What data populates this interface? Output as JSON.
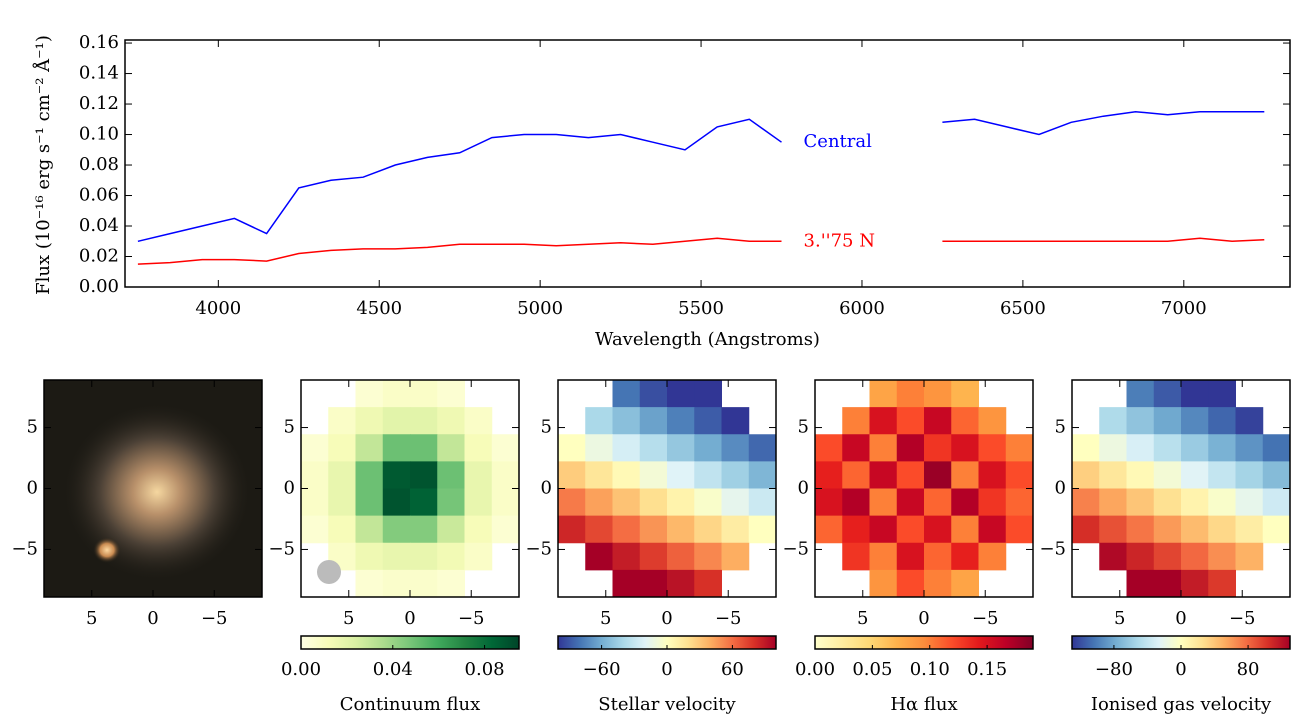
{
  "chart_data": [
    {
      "type": "line",
      "xlabel": "Wavelength (Angstroms)",
      "ylabel": "Flux (10⁻¹⁶ erg s⁻¹ cm⁻² Å⁻¹)",
      "x": [
        3750,
        3850,
        3950,
        4050,
        4150,
        4250,
        4350,
        4450,
        4550,
        4650,
        4750,
        4850,
        4950,
        5050,
        5150,
        5250,
        5350,
        5450,
        5550,
        5650,
        5750,
        5850,
        5950,
        6050,
        6150,
        6250,
        6350,
        6450,
        6550,
        6650,
        6750,
        6850,
        6950,
        7050,
        7150,
        7250
      ],
      "series": [
        {
          "name": "Central",
          "color": "#0000ff",
          "values": [
            0.03,
            0.035,
            0.04,
            0.045,
            0.035,
            0.065,
            0.07,
            0.072,
            0.08,
            0.085,
            0.088,
            0.098,
            0.1,
            0.1,
            0.098,
            0.1,
            0.095,
            0.09,
            0.105,
            0.11,
            0.095,
            null,
            null,
            null,
            null,
            0.108,
            0.11,
            0.105,
            0.1,
            0.108,
            0.112,
            0.115,
            0.113,
            0.115,
            0.115,
            0.115
          ]
        },
        {
          "name": "3.''75 N",
          "color": "#ff0000",
          "values": [
            0.015,
            0.016,
            0.018,
            0.018,
            0.017,
            0.022,
            0.024,
            0.025,
            0.025,
            0.026,
            0.028,
            0.028,
            0.028,
            0.027,
            0.028,
            0.029,
            0.028,
            0.03,
            0.032,
            0.03,
            0.03,
            null,
            null,
            null,
            null,
            0.03,
            0.03,
            0.03,
            0.03,
            0.03,
            0.03,
            0.03,
            0.03,
            0.032,
            0.03,
            0.031
          ]
        }
      ],
      "xlim": [
        3710,
        7330
      ],
      "ylim": [
        0,
        0.162
      ],
      "xticks": [
        4000,
        4500,
        5000,
        5500,
        6000,
        6500,
        7000
      ],
      "yticks": [
        {
          "value": 0,
          "label": "0.00"
        },
        0.02,
        0.04,
        0.06,
        0.08,
        {
          "value": 0.1,
          "label": "0.10"
        },
        0.12,
        0.14,
        0.16
      ]
    },
    {
      "type": "image",
      "xlim": [
        8.9,
        -8.9
      ],
      "ylim": [
        -8.9,
        8.9
      ],
      "xticks": [
        5,
        0,
        {
          "value": -5,
          "label": "−5"
        }
      ],
      "yticks": [
        5,
        0,
        {
          "value": -5,
          "label": "−5"
        }
      ]
    },
    {
      "type": "heatmap",
      "xlim": [
        8.9,
        -8.9
      ],
      "ylim": [
        -8.9,
        8.9
      ],
      "xticks": [
        5,
        0,
        {
          "value": -5,
          "label": "−5"
        }
      ],
      "yticks": [
        5,
        0,
        {
          "value": -5,
          "label": "−5"
        }
      ],
      "z": [
        [
          null,
          null,
          0.005,
          0.008,
          0.008,
          0.005,
          null,
          null
        ],
        [
          null,
          0.008,
          0.015,
          0.02,
          0.02,
          0.015,
          0.008,
          null
        ],
        [
          0.005,
          0.012,
          0.03,
          0.05,
          0.05,
          0.03,
          0.012,
          0.005
        ],
        [
          0.008,
          0.018,
          0.05,
          0.088,
          0.09,
          0.05,
          0.018,
          0.008
        ],
        [
          0.008,
          0.018,
          0.05,
          0.09,
          0.085,
          0.048,
          0.018,
          0.008
        ],
        [
          0.005,
          0.012,
          0.03,
          0.045,
          0.045,
          0.028,
          0.012,
          0.005
        ],
        [
          null,
          0.008,
          0.015,
          0.018,
          0.018,
          0.014,
          0.008,
          null
        ],
        [
          null,
          null,
          0.005,
          0.007,
          0.007,
          0.005,
          null,
          null
        ]
      ],
      "colorbar": {
        "label": "Continuum flux",
        "lim": [
          0,
          0.095
        ],
        "ticks": [
          {
            "value": 0,
            "label": "0.00"
          },
          0.04,
          0.08
        ],
        "colors": [
          "#ffffe5",
          "#f7fcb9",
          "#d9f0a3",
          "#addd8e",
          "#78c679",
          "#41ab5d",
          "#238443",
          "#006837",
          "#004529"
        ]
      }
    },
    {
      "type": "heatmap",
      "xlim": [
        8.9,
        -8.9
      ],
      "ylim": [
        -8.9,
        8.9
      ],
      "xticks": [
        5,
        0,
        {
          "value": -5,
          "label": "−5"
        }
      ],
      "yticks": [
        5,
        0,
        {
          "value": -5,
          "label": "−5"
        }
      ],
      "z": [
        [
          null,
          null,
          -80,
          -92,
          -104,
          -116,
          null,
          null
        ],
        [
          null,
          -40,
          -52,
          -64,
          -76,
          -88,
          -100,
          null
        ],
        [
          0,
          -12,
          -24,
          -36,
          -48,
          -60,
          -72,
          -84
        ],
        [
          28,
          16,
          4,
          -8,
          -20,
          -32,
          -44,
          -56
        ],
        [
          56,
          44,
          32,
          20,
          8,
          -4,
          -16,
          -28
        ],
        [
          84,
          72,
          60,
          48,
          36,
          24,
          12,
          0
        ],
        [
          null,
          100,
          88,
          76,
          64,
          52,
          40,
          null
        ],
        [
          null,
          null,
          116,
          104,
          92,
          80,
          null,
          null
        ]
      ],
      "colorbar": {
        "label": "Stellar velocity",
        "lim": [
          -100,
          100
        ],
        "ticks": [
          {
            "value": -60,
            "label": "−60"
          },
          0,
          60
        ],
        "colors": [
          "#313695",
          "#4575b4",
          "#74add1",
          "#abd9e9",
          "#e0f3f8",
          "#ffffbf",
          "#fee090",
          "#fdae61",
          "#f46d43",
          "#d73027",
          "#a50026"
        ]
      }
    },
    {
      "type": "heatmap",
      "xlim": [
        8.9,
        -8.9
      ],
      "ylim": [
        -8.9,
        8.9
      ],
      "xticks": [
        5,
        0,
        {
          "value": -5,
          "label": "−5"
        }
      ],
      "yticks": [
        5,
        0,
        {
          "value": -5,
          "label": "−5"
        }
      ],
      "z": [
        [
          null,
          null,
          0.08,
          0.1,
          0.09,
          0.07,
          null,
          null
        ],
        [
          null,
          0.1,
          0.15,
          0.12,
          0.16,
          0.11,
          0.09,
          null
        ],
        [
          0.12,
          0.16,
          0.1,
          0.17,
          0.13,
          0.15,
          0.12,
          0.1
        ],
        [
          0.14,
          0.11,
          0.16,
          0.12,
          0.18,
          0.1,
          0.15,
          0.12
        ],
        [
          0.15,
          0.17,
          0.1,
          0.16,
          0.11,
          0.17,
          0.13,
          0.11
        ],
        [
          0.11,
          0.14,
          0.16,
          0.12,
          0.15,
          0.1,
          0.16,
          0.12
        ],
        [
          null,
          0.13,
          0.1,
          0.15,
          0.11,
          0.14,
          0.1,
          null
        ],
        [
          null,
          null,
          0.09,
          0.12,
          0.1,
          0.08,
          null,
          null
        ]
      ],
      "colorbar": {
        "label": "Hα flux",
        "lim": [
          0,
          0.19
        ],
        "ticks": [
          {
            "value": 0,
            "label": "0.00"
          },
          0.05,
          {
            "value": 0.1,
            "label": "0.10"
          },
          0.15
        ],
        "colors": [
          "#ffffcc",
          "#ffeda0",
          "#fed976",
          "#feb24c",
          "#fd8d3c",
          "#fc4e2a",
          "#e31a1c",
          "#bd0026",
          "#800026"
        ]
      }
    },
    {
      "type": "heatmap",
      "xlim": [
        8.9,
        -8.9
      ],
      "ylim": [
        -8.9,
        8.9
      ],
      "xticks": [
        5,
        0,
        {
          "value": -5,
          "label": "−5"
        }
      ],
      "yticks": [
        5,
        0,
        {
          "value": -5,
          "label": "−5"
        }
      ],
      "z": [
        [
          null,
          null,
          -100,
          -115,
          -130,
          -145,
          null,
          null
        ],
        [
          null,
          -50,
          -65,
          -80,
          -95,
          -110,
          -125,
          null
        ],
        [
          0,
          -15,
          -30,
          -45,
          -60,
          -75,
          -90,
          -105
        ],
        [
          35,
          20,
          5,
          -10,
          -25,
          -40,
          -55,
          -70
        ],
        [
          70,
          55,
          40,
          25,
          10,
          -5,
          -20,
          -35
        ],
        [
          105,
          90,
          75,
          60,
          45,
          30,
          15,
          0
        ],
        [
          null,
          125,
          110,
          95,
          80,
          65,
          50,
          null
        ],
        [
          null,
          null,
          145,
          130,
          115,
          100,
          null,
          null
        ]
      ],
      "colorbar": {
        "label": "Ionised gas velocity",
        "lim": [
          -130,
          130
        ],
        "ticks": [
          {
            "value": -80,
            "label": "−80"
          },
          0,
          80
        ],
        "colors": [
          "#313695",
          "#4575b4",
          "#74add1",
          "#abd9e9",
          "#e0f3f8",
          "#ffffbf",
          "#fee090",
          "#fdae61",
          "#f46d43",
          "#d73027",
          "#a50026"
        ]
      }
    }
  ]
}
